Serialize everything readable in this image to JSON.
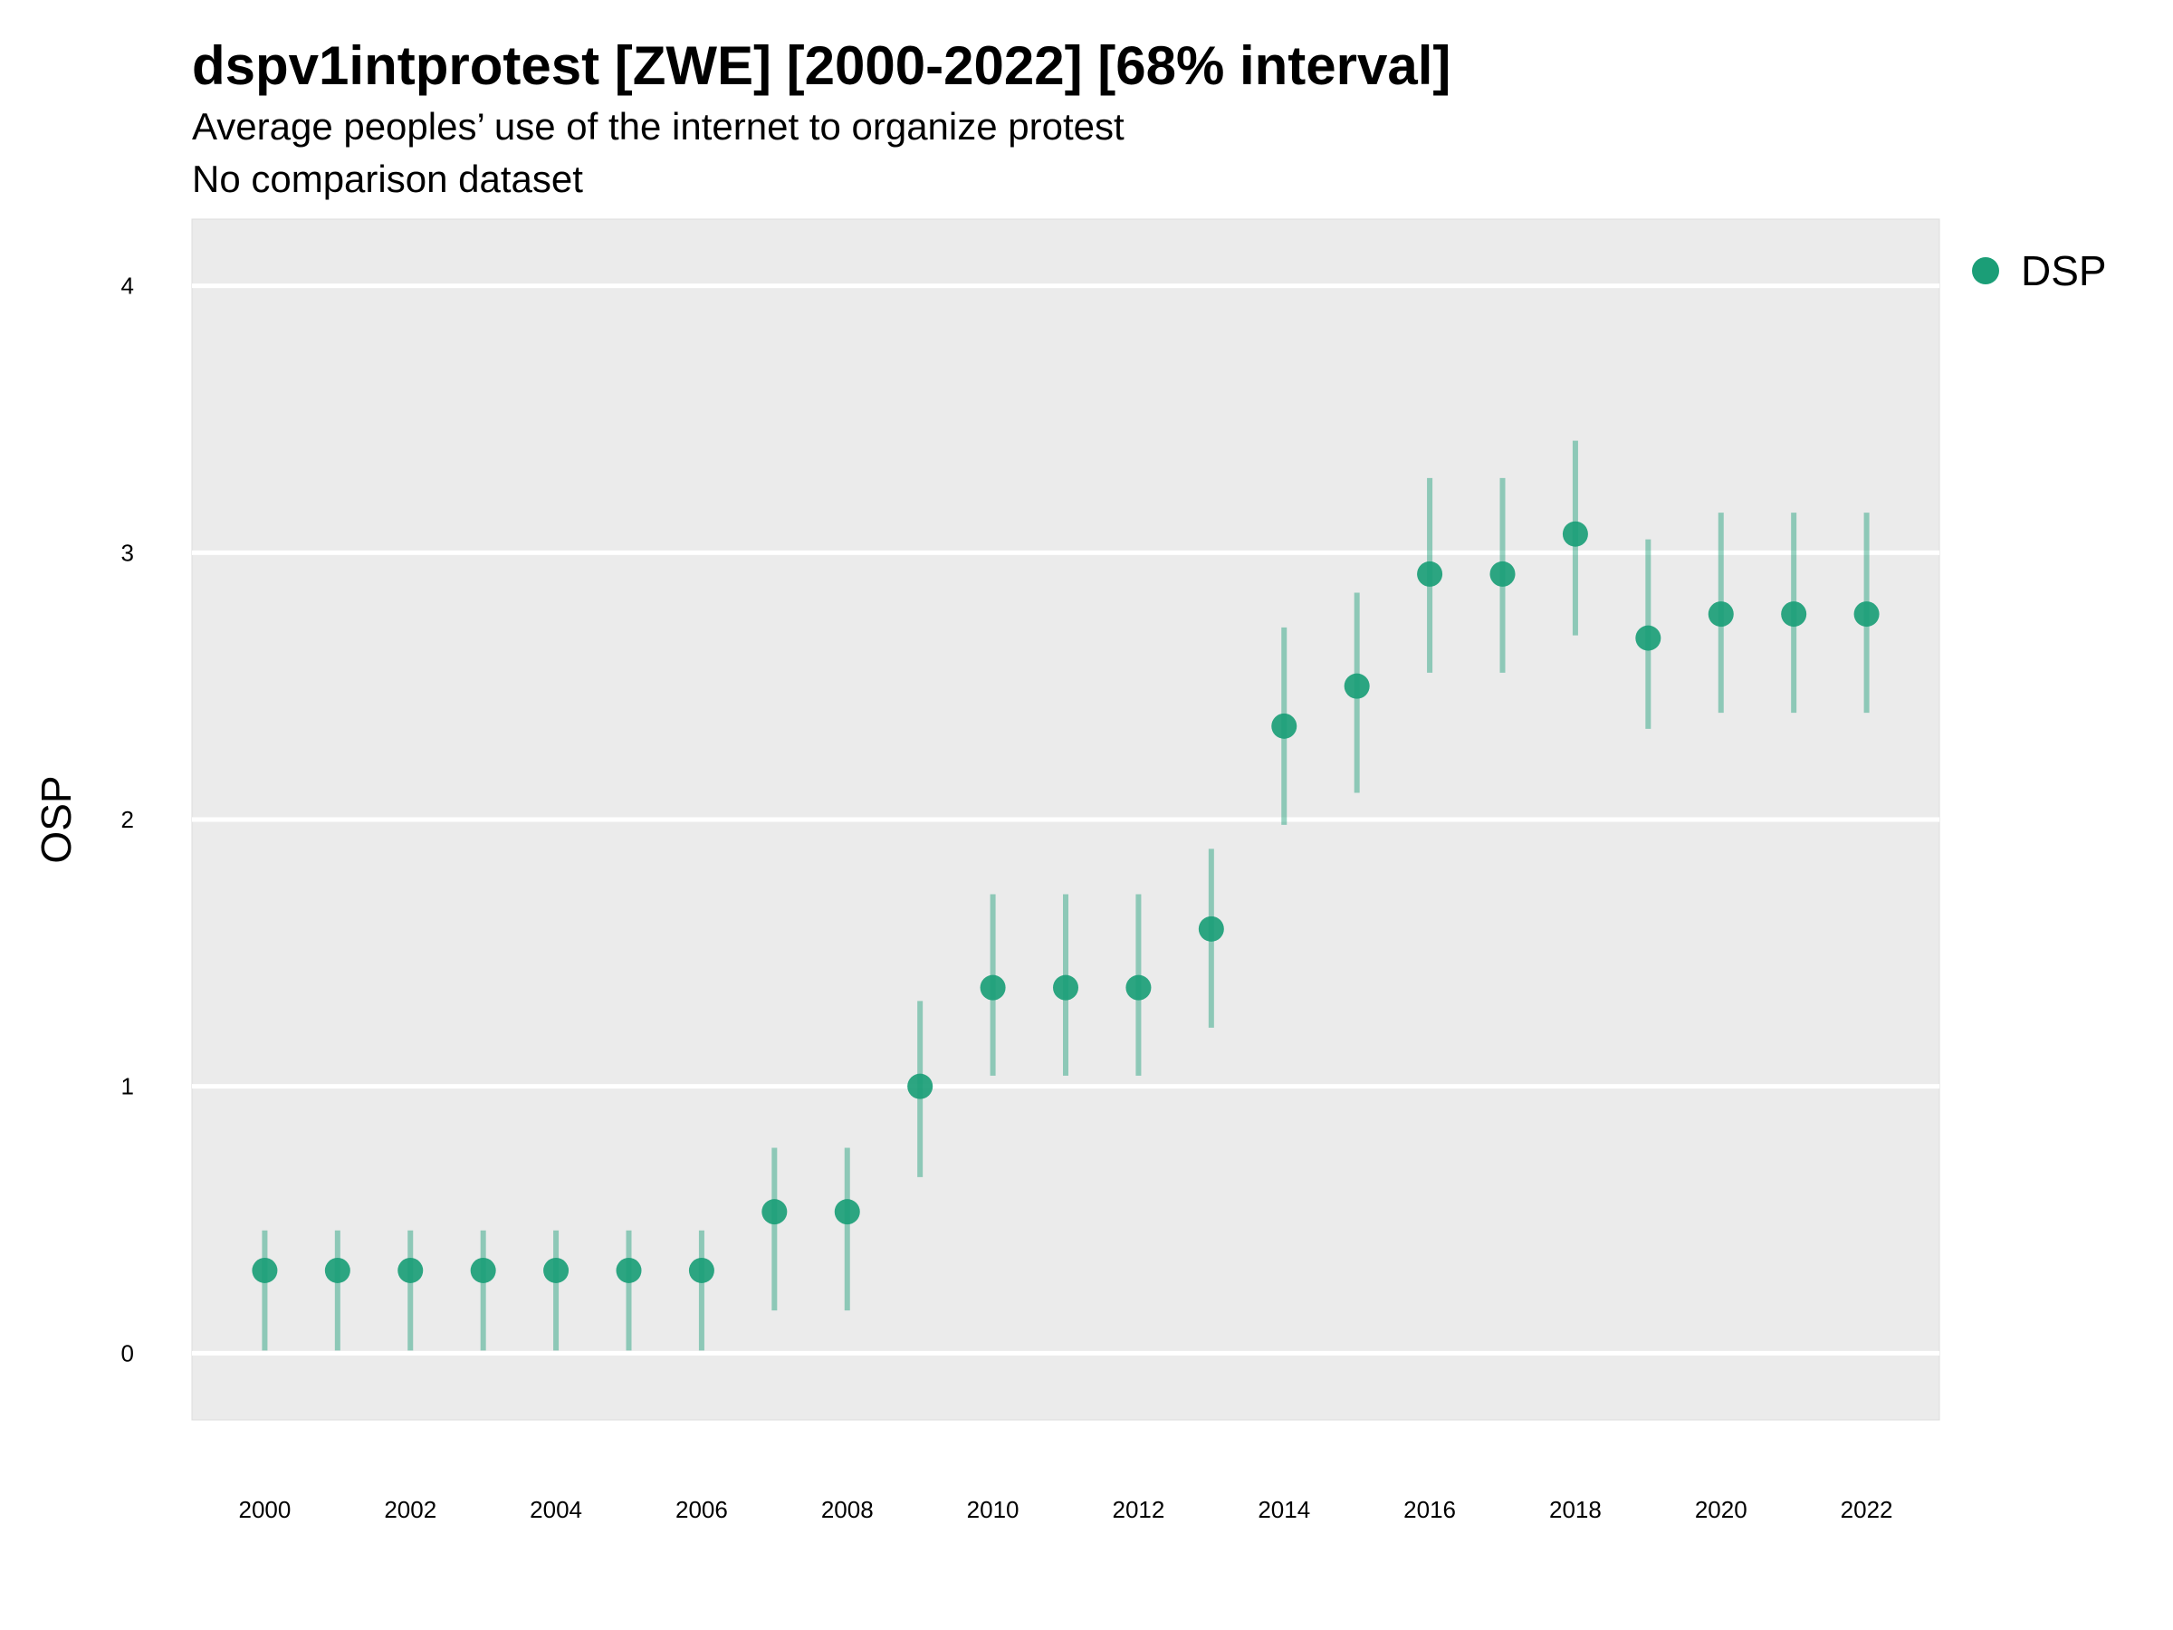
{
  "chart_data": {
    "type": "scatter",
    "title": "dspv1intprotest [ZWE] [2000-2022] [68% interval]",
    "subtitle": "Average peoples’ use of the internet to organize protest",
    "subtitle2": "No comparison dataset",
    "xlabel": "",
    "ylabel": "OSP",
    "xlim": [
      1999,
      2023
    ],
    "ylim": [
      -0.25,
      4.25
    ],
    "yticks": [
      0,
      1,
      2,
      3,
      4
    ],
    "xticks": [
      2000,
      2002,
      2004,
      2006,
      2008,
      2010,
      2012,
      2014,
      2016,
      2018,
      2020,
      2022
    ],
    "grid": true,
    "legend_position": "right",
    "series": [
      {
        "name": "DSP",
        "color": "#1b9e77",
        "x": [
          2000,
          2001,
          2002,
          2003,
          2004,
          2005,
          2006,
          2007,
          2008,
          2009,
          2010,
          2011,
          2012,
          2013,
          2014,
          2015,
          2016,
          2017,
          2018,
          2019,
          2020,
          2021,
          2022
        ],
        "y": [
          0.31,
          0.31,
          0.31,
          0.31,
          0.31,
          0.31,
          0.31,
          0.53,
          0.53,
          1.0,
          1.37,
          1.37,
          1.37,
          1.59,
          2.35,
          2.5,
          2.92,
          2.92,
          3.07,
          2.68,
          2.77,
          2.77,
          2.77
        ],
        "lower": [
          0.01,
          0.01,
          0.01,
          0.01,
          0.01,
          0.01,
          0.01,
          0.16,
          0.16,
          0.66,
          1.04,
          1.04,
          1.04,
          1.22,
          1.98,
          2.1,
          2.55,
          2.55,
          2.69,
          2.34,
          2.4,
          2.4,
          2.4
        ],
        "upper": [
          0.46,
          0.46,
          0.46,
          0.46,
          0.46,
          0.46,
          0.46,
          0.77,
          0.77,
          1.32,
          1.72,
          1.72,
          1.72,
          1.89,
          2.72,
          2.85,
          3.28,
          3.28,
          3.42,
          3.05,
          3.15,
          3.15,
          3.15
        ]
      }
    ]
  }
}
